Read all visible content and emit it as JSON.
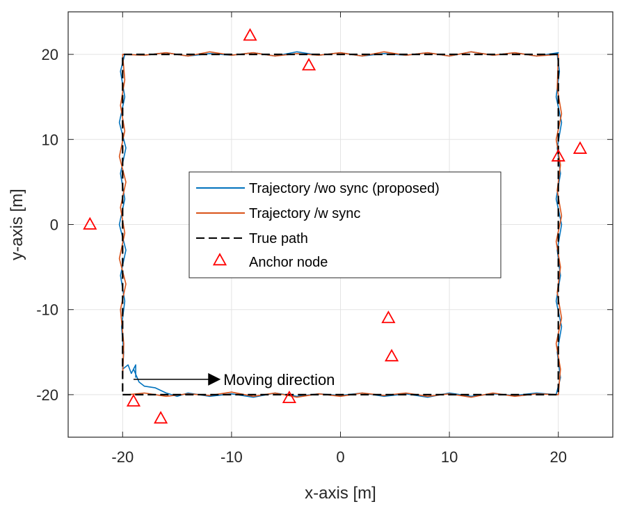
{
  "chart_data": {
    "type": "line",
    "xlabel": "x-axis [m]",
    "ylabel": "y-axis [m]",
    "xlim": [
      -25,
      25
    ],
    "ylim": [
      -25,
      25
    ],
    "xticks": [
      -20,
      -10,
      0,
      10,
      20
    ],
    "yticks": [
      -20,
      -10,
      0,
      10,
      20
    ],
    "xtick_labels": [
      "-20",
      "-10",
      "0",
      "10",
      "20"
    ],
    "ytick_labels": [
      "-20",
      "-10",
      "0",
      "10",
      "20"
    ],
    "grid": true,
    "legend_position": "center",
    "series": [
      {
        "name": "Trajectory /wo sync (proposed)",
        "style": "solid",
        "color": "#0072BD",
        "x": [
          -19.0,
          -18.5,
          -18.0,
          -17.0,
          -16.0,
          -15.0,
          -14.0,
          -12.0,
          -10.0,
          -8.0,
          -6.0,
          -4.0,
          -2.0,
          0.0,
          2.0,
          4.0,
          6.0,
          8.0,
          10.0,
          12.0,
          14.0,
          16.0,
          18.0,
          19.8,
          20.2,
          19.9,
          20.3,
          19.8,
          20.2,
          19.9,
          20.3,
          19.8,
          20.2,
          19.9,
          20.3,
          19.8,
          20.1,
          19.9,
          20.0,
          18.0,
          16.0,
          14.0,
          12.0,
          10.0,
          8.0,
          6.0,
          4.0,
          2.0,
          0.0,
          -2.0,
          -4.0,
          -6.0,
          -8.0,
          -10.0,
          -12.0,
          -14.0,
          -16.0,
          -18.0,
          -19.8,
          -20.2,
          -19.8,
          -20.3,
          -19.7,
          -20.2,
          -19.8,
          -20.3,
          -19.7,
          -20.2,
          -19.8,
          -20.1,
          -19.9,
          -20.0,
          -19.5,
          -19.2,
          -18.8,
          -18.8
        ],
        "y": [
          -17.0,
          -18.5,
          -19.0,
          -19.2,
          -19.8,
          -20.2,
          -19.8,
          -20.2,
          -19.9,
          -20.3,
          -19.8,
          -20.2,
          -19.9,
          -20.1,
          -19.8,
          -20.2,
          -19.9,
          -20.3,
          -19.8,
          -20.2,
          -19.9,
          -20.1,
          -19.8,
          -20.0,
          -18.0,
          -15.0,
          -12.0,
          -9.0,
          -6.0,
          -3.0,
          0.0,
          3.0,
          6.0,
          9.0,
          12.0,
          15.0,
          18.0,
          20.0,
          20.2,
          19.8,
          20.2,
          19.9,
          20.3,
          19.8,
          20.2,
          19.9,
          20.1,
          19.8,
          20.2,
          19.9,
          20.3,
          19.8,
          20.2,
          19.9,
          20.1,
          19.8,
          20.2,
          19.9,
          20.0,
          18.0,
          15.0,
          12.0,
          9.0,
          6.0,
          3.0,
          0.0,
          -3.0,
          -6.0,
          -9.0,
          -12.0,
          -15.0,
          -17.0,
          -16.5,
          -17.5,
          -16.5,
          -18.0
        ]
      },
      {
        "name": "Trajectory /w sync",
        "style": "solid",
        "color": "#D95319",
        "x": [
          -19.5,
          -18.0,
          -16.0,
          -14.0,
          -12.0,
          -10.0,
          -8.0,
          -6.0,
          -4.0,
          -2.0,
          0.0,
          2.0,
          4.0,
          6.0,
          8.0,
          10.0,
          12.0,
          14.0,
          16.0,
          18.0,
          20.0,
          20.2,
          19.8,
          20.3,
          19.9,
          20.2,
          19.8,
          20.3,
          19.9,
          20.2,
          19.8,
          20.3,
          19.9,
          20.0,
          18.0,
          16.0,
          14.0,
          12.0,
          10.0,
          8.0,
          6.0,
          4.0,
          2.0,
          0.0,
          -2.0,
          -4.0,
          -6.0,
          -8.0,
          -10.0,
          -12.0,
          -14.0,
          -16.0,
          -18.0,
          -20.0,
          -19.8,
          -20.2,
          -19.8,
          -20.3,
          -19.7,
          -20.2,
          -19.8,
          -20.3,
          -19.7,
          -20.2,
          -19.9,
          -20.0
        ],
        "y": [
          -20.0,
          -19.8,
          -20.2,
          -19.9,
          -20.1,
          -19.7,
          -20.2,
          -19.8,
          -20.3,
          -19.9,
          -20.2,
          -19.8,
          -20.1,
          -19.8,
          -20.2,
          -19.9,
          -20.3,
          -19.8,
          -20.2,
          -19.9,
          -20.0,
          -17.0,
          -14.0,
          -11.0,
          -8.0,
          -5.0,
          -2.0,
          1.0,
          4.0,
          7.0,
          10.0,
          13.0,
          16.0,
          20.0,
          19.8,
          20.2,
          19.9,
          20.3,
          19.8,
          20.2,
          19.9,
          20.3,
          19.8,
          20.2,
          19.9,
          20.1,
          19.8,
          20.2,
          19.9,
          20.3,
          19.8,
          20.2,
          19.9,
          20.0,
          17.0,
          14.0,
          11.0,
          8.0,
          5.0,
          2.0,
          -1.0,
          -4.0,
          -7.0,
          -10.0,
          -14.0,
          -18.0
        ]
      },
      {
        "name": "True path",
        "style": "dashed",
        "color": "#000000",
        "x": [
          -20,
          20,
          20,
          -20,
          -20
        ],
        "y": [
          -20,
          -20,
          20,
          20,
          -20
        ]
      },
      {
        "name": "Anchor node",
        "style": "marker",
        "marker": "triangle",
        "color": "#FF0000",
        "x": [
          -8.3,
          -2.9,
          -23.0,
          20.0,
          22.0,
          4.4,
          4.7,
          -19.0,
          -16.5,
          -4.7
        ],
        "y": [
          22.2,
          18.7,
          0.0,
          8.0,
          8.9,
          -11.0,
          -15.5,
          -20.8,
          -22.8,
          -20.4
        ]
      }
    ],
    "annotations": [
      {
        "text": "Moving direction",
        "arrow_from": [
          -19,
          -18.2
        ],
        "arrow_to": [
          -11,
          -18.2
        ]
      }
    ]
  }
}
